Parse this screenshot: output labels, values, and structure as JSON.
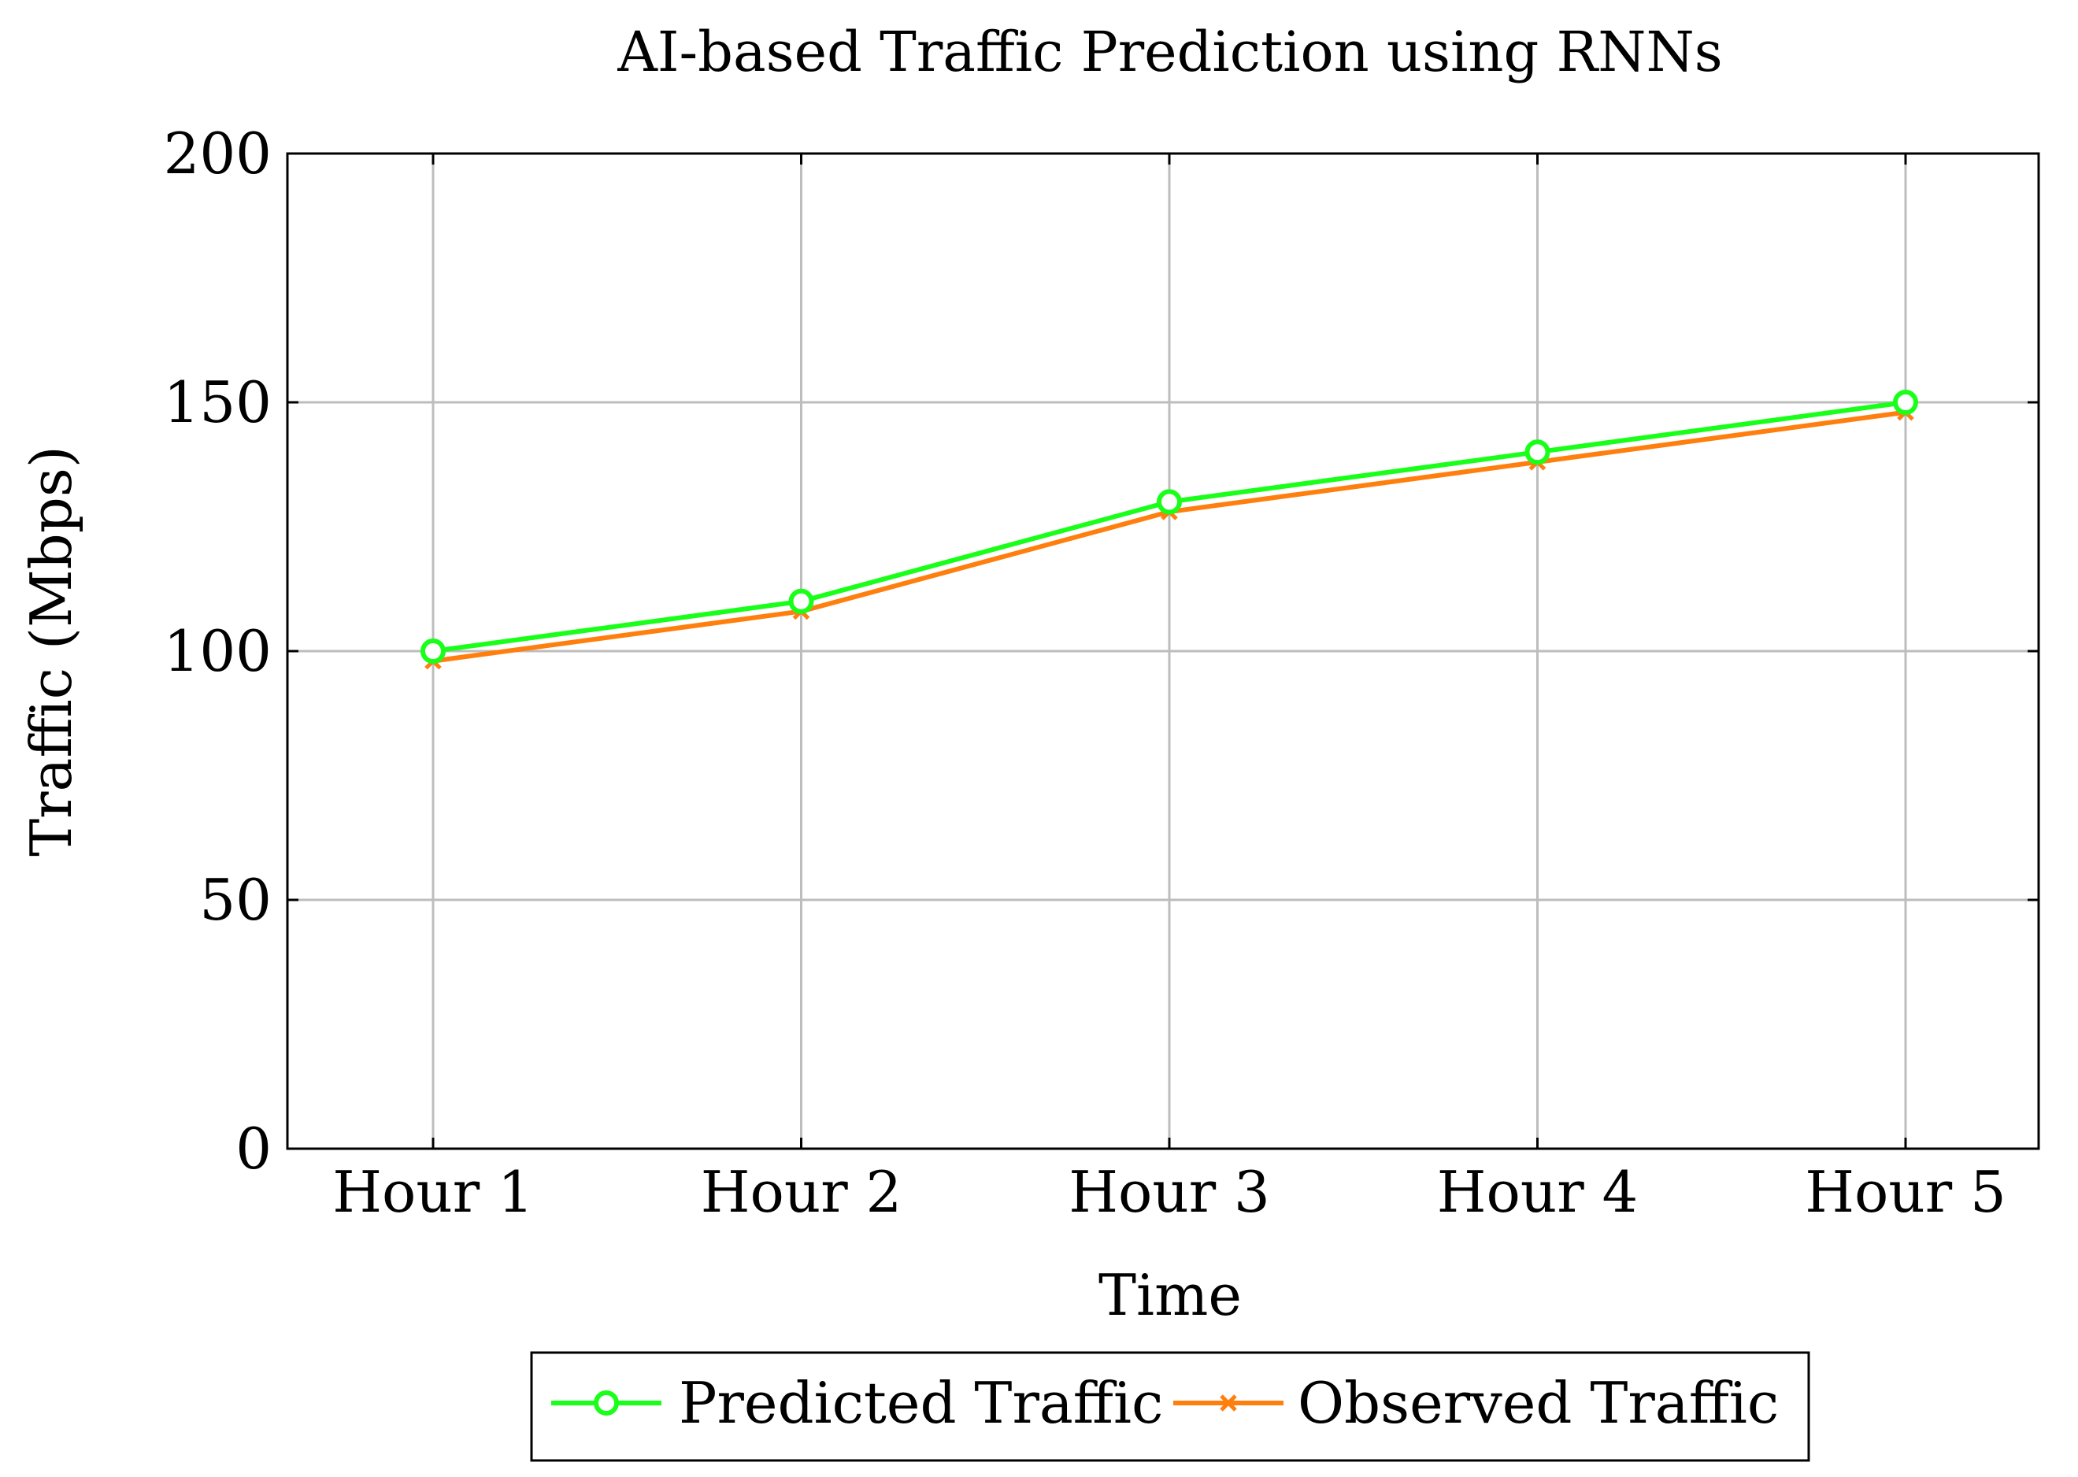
{
  "chart_data": {
    "type": "line",
    "title": "AI-based Traffic Prediction using RNNs",
    "xlabel": "Time",
    "ylabel": "Traffic (Mbps)",
    "categories": [
      "Hour 1",
      "Hour 2",
      "Hour 3",
      "Hour 4",
      "Hour 5"
    ],
    "ylim": [
      0,
      200
    ],
    "yticks": [
      0,
      50,
      100,
      150,
      200
    ],
    "grid": true,
    "legend_position": "bottom-center",
    "series": [
      {
        "name": "Predicted Traffic",
        "values": [
          100,
          110,
          130,
          140,
          150
        ],
        "color": "#1aff1a",
        "marker": "circle"
      },
      {
        "name": "Observed Traffic",
        "values": [
          98,
          108,
          128,
          138,
          148
        ],
        "color": "#ff7f0e",
        "marker": "x"
      }
    ]
  }
}
